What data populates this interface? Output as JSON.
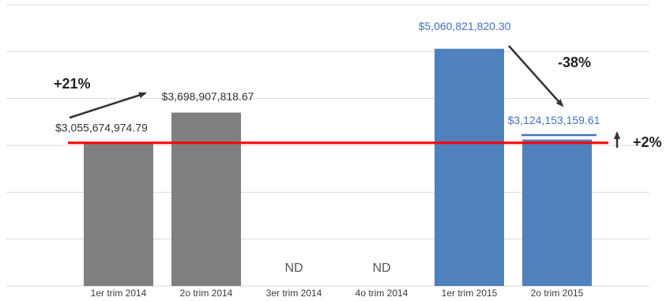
{
  "chart_data": {
    "type": "bar",
    "categories": [
      "1er trim 2014",
      "2o trim 2014",
      "3er trim 2014",
      "4o trim 2014",
      "1er trim 2015",
      "2o trim 2015"
    ],
    "values": [
      3055674974.79,
      3698907818.67,
      null,
      null,
      5060821820.3,
      3124153159.61
    ],
    "value_labels": [
      "$3,055,674,974.79",
      "$3,698,907,818.67",
      "ND",
      "ND",
      "$5,060,821,820.30",
      "$3,124,153,159.61"
    ],
    "bar_colors": [
      "#808080",
      "#808080",
      "#808080",
      "#808080",
      "#4f81bd",
      "#4f81bd"
    ],
    "label_colors": [
      "#333333",
      "#333333",
      "#555555",
      "#555555",
      "#4472c4",
      "#4472c4"
    ],
    "ylim": [
      0,
      6000000000
    ],
    "gridlines": [
      0,
      1000000000,
      2000000000,
      3000000000,
      4000000000,
      5000000000,
      6000000000
    ],
    "y_tick_labels_shown": false,
    "reference_line": {
      "value": 3055674974.79,
      "color": "#ff0000"
    },
    "annotations": {
      "change_2014": "+21%",
      "change_2015": "-38%",
      "change_vs_2014": "+2%"
    },
    "title": "",
    "xlabel": "",
    "ylabel": ""
  }
}
